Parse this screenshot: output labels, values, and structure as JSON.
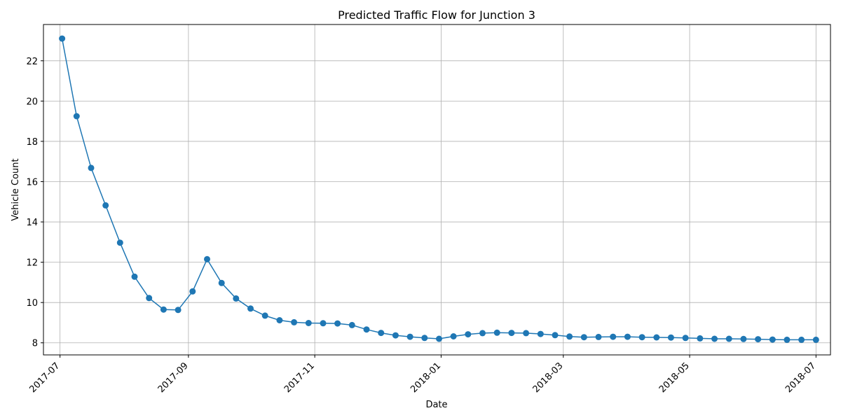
{
  "chart_data": {
    "type": "line",
    "title": "Predicted Traffic Flow for Junction 3",
    "xlabel": "Date",
    "ylabel": "Vehicle Count",
    "x_ticks": [
      "2017-07",
      "2017-09",
      "2017-11",
      "2018-01",
      "2018-03",
      "2018-05",
      "2018-07"
    ],
    "y_ticks": [
      8,
      10,
      12,
      14,
      16,
      18,
      20,
      22
    ],
    "ylim": [
      7.4,
      23.8
    ],
    "xlim": [
      "2017-06-23",
      "2018-07-08"
    ],
    "grid": true,
    "color": "#1f77b4",
    "series": [
      {
        "x": [
          "2017-07-02",
          "2017-07-09",
          "2017-07-16",
          "2017-07-23",
          "2017-07-30",
          "2017-08-06",
          "2017-08-13",
          "2017-08-20",
          "2017-08-27",
          "2017-09-03",
          "2017-09-10",
          "2017-09-17",
          "2017-09-24",
          "2017-10-01",
          "2017-10-08",
          "2017-10-15",
          "2017-10-22",
          "2017-10-29",
          "2017-11-05",
          "2017-11-12",
          "2017-11-19",
          "2017-11-26",
          "2017-12-03",
          "2017-12-10",
          "2017-12-17",
          "2017-12-24",
          "2017-12-31",
          "2018-01-07",
          "2018-01-14",
          "2018-01-21",
          "2018-01-28",
          "2018-02-04",
          "2018-02-11",
          "2018-02-18",
          "2018-02-25",
          "2018-03-04",
          "2018-03-11",
          "2018-03-18",
          "2018-03-25",
          "2018-04-01",
          "2018-04-08",
          "2018-04-15",
          "2018-04-22",
          "2018-04-29",
          "2018-05-06",
          "2018-05-13",
          "2018-05-20",
          "2018-05-27",
          "2018-06-03",
          "2018-06-10",
          "2018-06-17",
          "2018-06-24",
          "2018-07-01"
        ],
        "values": [
          23.1,
          19.25,
          16.68,
          14.82,
          12.97,
          11.28,
          10.22,
          9.65,
          9.63,
          10.55,
          12.15,
          10.97,
          10.2,
          9.7,
          9.35,
          9.12,
          9.02,
          8.98,
          8.97,
          8.96,
          8.88,
          8.66,
          8.49,
          8.37,
          8.3,
          8.24,
          8.2,
          8.32,
          8.42,
          8.48,
          8.5,
          8.49,
          8.48,
          8.44,
          8.38,
          8.31,
          8.28,
          8.29,
          8.3,
          8.3,
          8.28,
          8.27,
          8.26,
          8.24,
          8.22,
          8.2,
          8.2,
          8.19,
          8.18,
          8.16,
          8.15,
          8.15,
          8.15
        ]
      }
    ]
  }
}
